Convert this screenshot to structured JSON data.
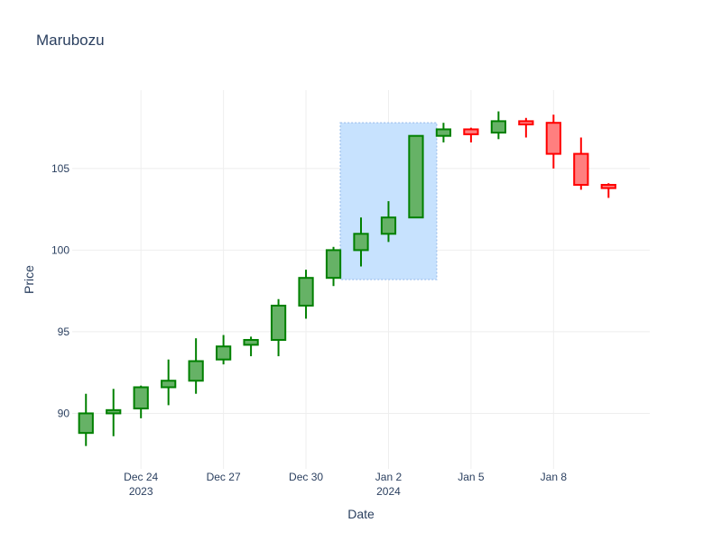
{
  "chart_data": {
    "type": "candlestick",
    "title": "Marubozu",
    "xlabel": "Date",
    "ylabel": "Price",
    "x_range": [
      "2023-12-21T12:00",
      "2024-01-11T12:00"
    ],
    "ylim": [
      86.6,
      109.8
    ],
    "grid": true,
    "legend": "none",
    "colors": {
      "increasing_line": "#008000",
      "increasing_fill": "#66b266",
      "decreasing_line": "#ff0000",
      "decreasing_fill": "#ff7f7f",
      "selection_fill": "#c7e2fe",
      "selection_border": "#a8c8f0",
      "grid": "#eeeeee",
      "text": "#2a3f5f"
    },
    "x_ticks": [
      {
        "date": "2023-12-24",
        "label": "Dec 24",
        "sublabel": "2023"
      },
      {
        "date": "2023-12-27",
        "label": "Dec 27",
        "sublabel": ""
      },
      {
        "date": "2023-12-30",
        "label": "Dec 30",
        "sublabel": ""
      },
      {
        "date": "2024-01-02",
        "label": "Jan 2",
        "sublabel": "2024"
      },
      {
        "date": "2024-01-05",
        "label": "Jan 5",
        "sublabel": ""
      },
      {
        "date": "2024-01-08",
        "label": "Jan 8",
        "sublabel": ""
      }
    ],
    "y_ticks": [
      {
        "value": 90,
        "label": "90"
      },
      {
        "value": 95,
        "label": "95"
      },
      {
        "value": 100,
        "label": "100"
      },
      {
        "value": 105,
        "label": "105"
      }
    ],
    "selection": {
      "x0": "2023-12-31",
      "x1": "2024-01-04",
      "y0": 98.2,
      "y1": 107.8
    },
    "candles": [
      {
        "date": "2023-12-22",
        "open": 88.8,
        "high": 91.2,
        "low": 88.0,
        "close": 90.0
      },
      {
        "date": "2023-12-23",
        "open": 90.0,
        "high": 91.5,
        "low": 88.6,
        "close": 90.2
      },
      {
        "date": "2023-12-24",
        "open": 90.3,
        "high": 91.7,
        "low": 89.7,
        "close": 91.6
      },
      {
        "date": "2023-12-25",
        "open": 91.6,
        "high": 93.3,
        "low": 90.5,
        "close": 92.0
      },
      {
        "date": "2023-12-26",
        "open": 92.0,
        "high": 94.6,
        "low": 91.2,
        "close": 93.2
      },
      {
        "date": "2023-12-27",
        "open": 93.3,
        "high": 94.8,
        "low": 93.0,
        "close": 94.1
      },
      {
        "date": "2023-12-28",
        "open": 94.2,
        "high": 94.7,
        "low": 93.5,
        "close": 94.5
      },
      {
        "date": "2023-12-29",
        "open": 94.5,
        "high": 97.0,
        "low": 93.5,
        "close": 96.6
      },
      {
        "date": "2023-12-30",
        "open": 96.6,
        "high": 98.8,
        "low": 95.8,
        "close": 98.3
      },
      {
        "date": "2023-12-31",
        "open": 98.3,
        "high": 100.2,
        "low": 97.8,
        "close": 100.0
      },
      {
        "date": "2024-01-01",
        "open": 100.0,
        "high": 102.0,
        "low": 99.0,
        "close": 101.0
      },
      {
        "date": "2024-01-02",
        "open": 101.0,
        "high": 103.0,
        "low": 100.5,
        "close": 102.0
      },
      {
        "date": "2024-01-03",
        "open": 102.0,
        "high": 107.0,
        "low": 102.0,
        "close": 107.0
      },
      {
        "date": "2024-01-04",
        "open": 107.0,
        "high": 107.8,
        "low": 106.6,
        "close": 107.4
      },
      {
        "date": "2024-01-05",
        "open": 107.4,
        "high": 107.5,
        "low": 106.6,
        "close": 107.1
      },
      {
        "date": "2024-01-06",
        "open": 107.2,
        "high": 108.5,
        "low": 106.8,
        "close": 107.9
      },
      {
        "date": "2024-01-07",
        "open": 107.9,
        "high": 108.1,
        "low": 106.9,
        "close": 107.7
      },
      {
        "date": "2024-01-08",
        "open": 107.8,
        "high": 108.3,
        "low": 105.0,
        "close": 105.9
      },
      {
        "date": "2024-01-09",
        "open": 105.9,
        "high": 106.9,
        "low": 103.7,
        "close": 104.0
      },
      {
        "date": "2024-01-10",
        "open": 104.0,
        "high": 104.1,
        "low": 103.2,
        "close": 103.8
      }
    ]
  }
}
